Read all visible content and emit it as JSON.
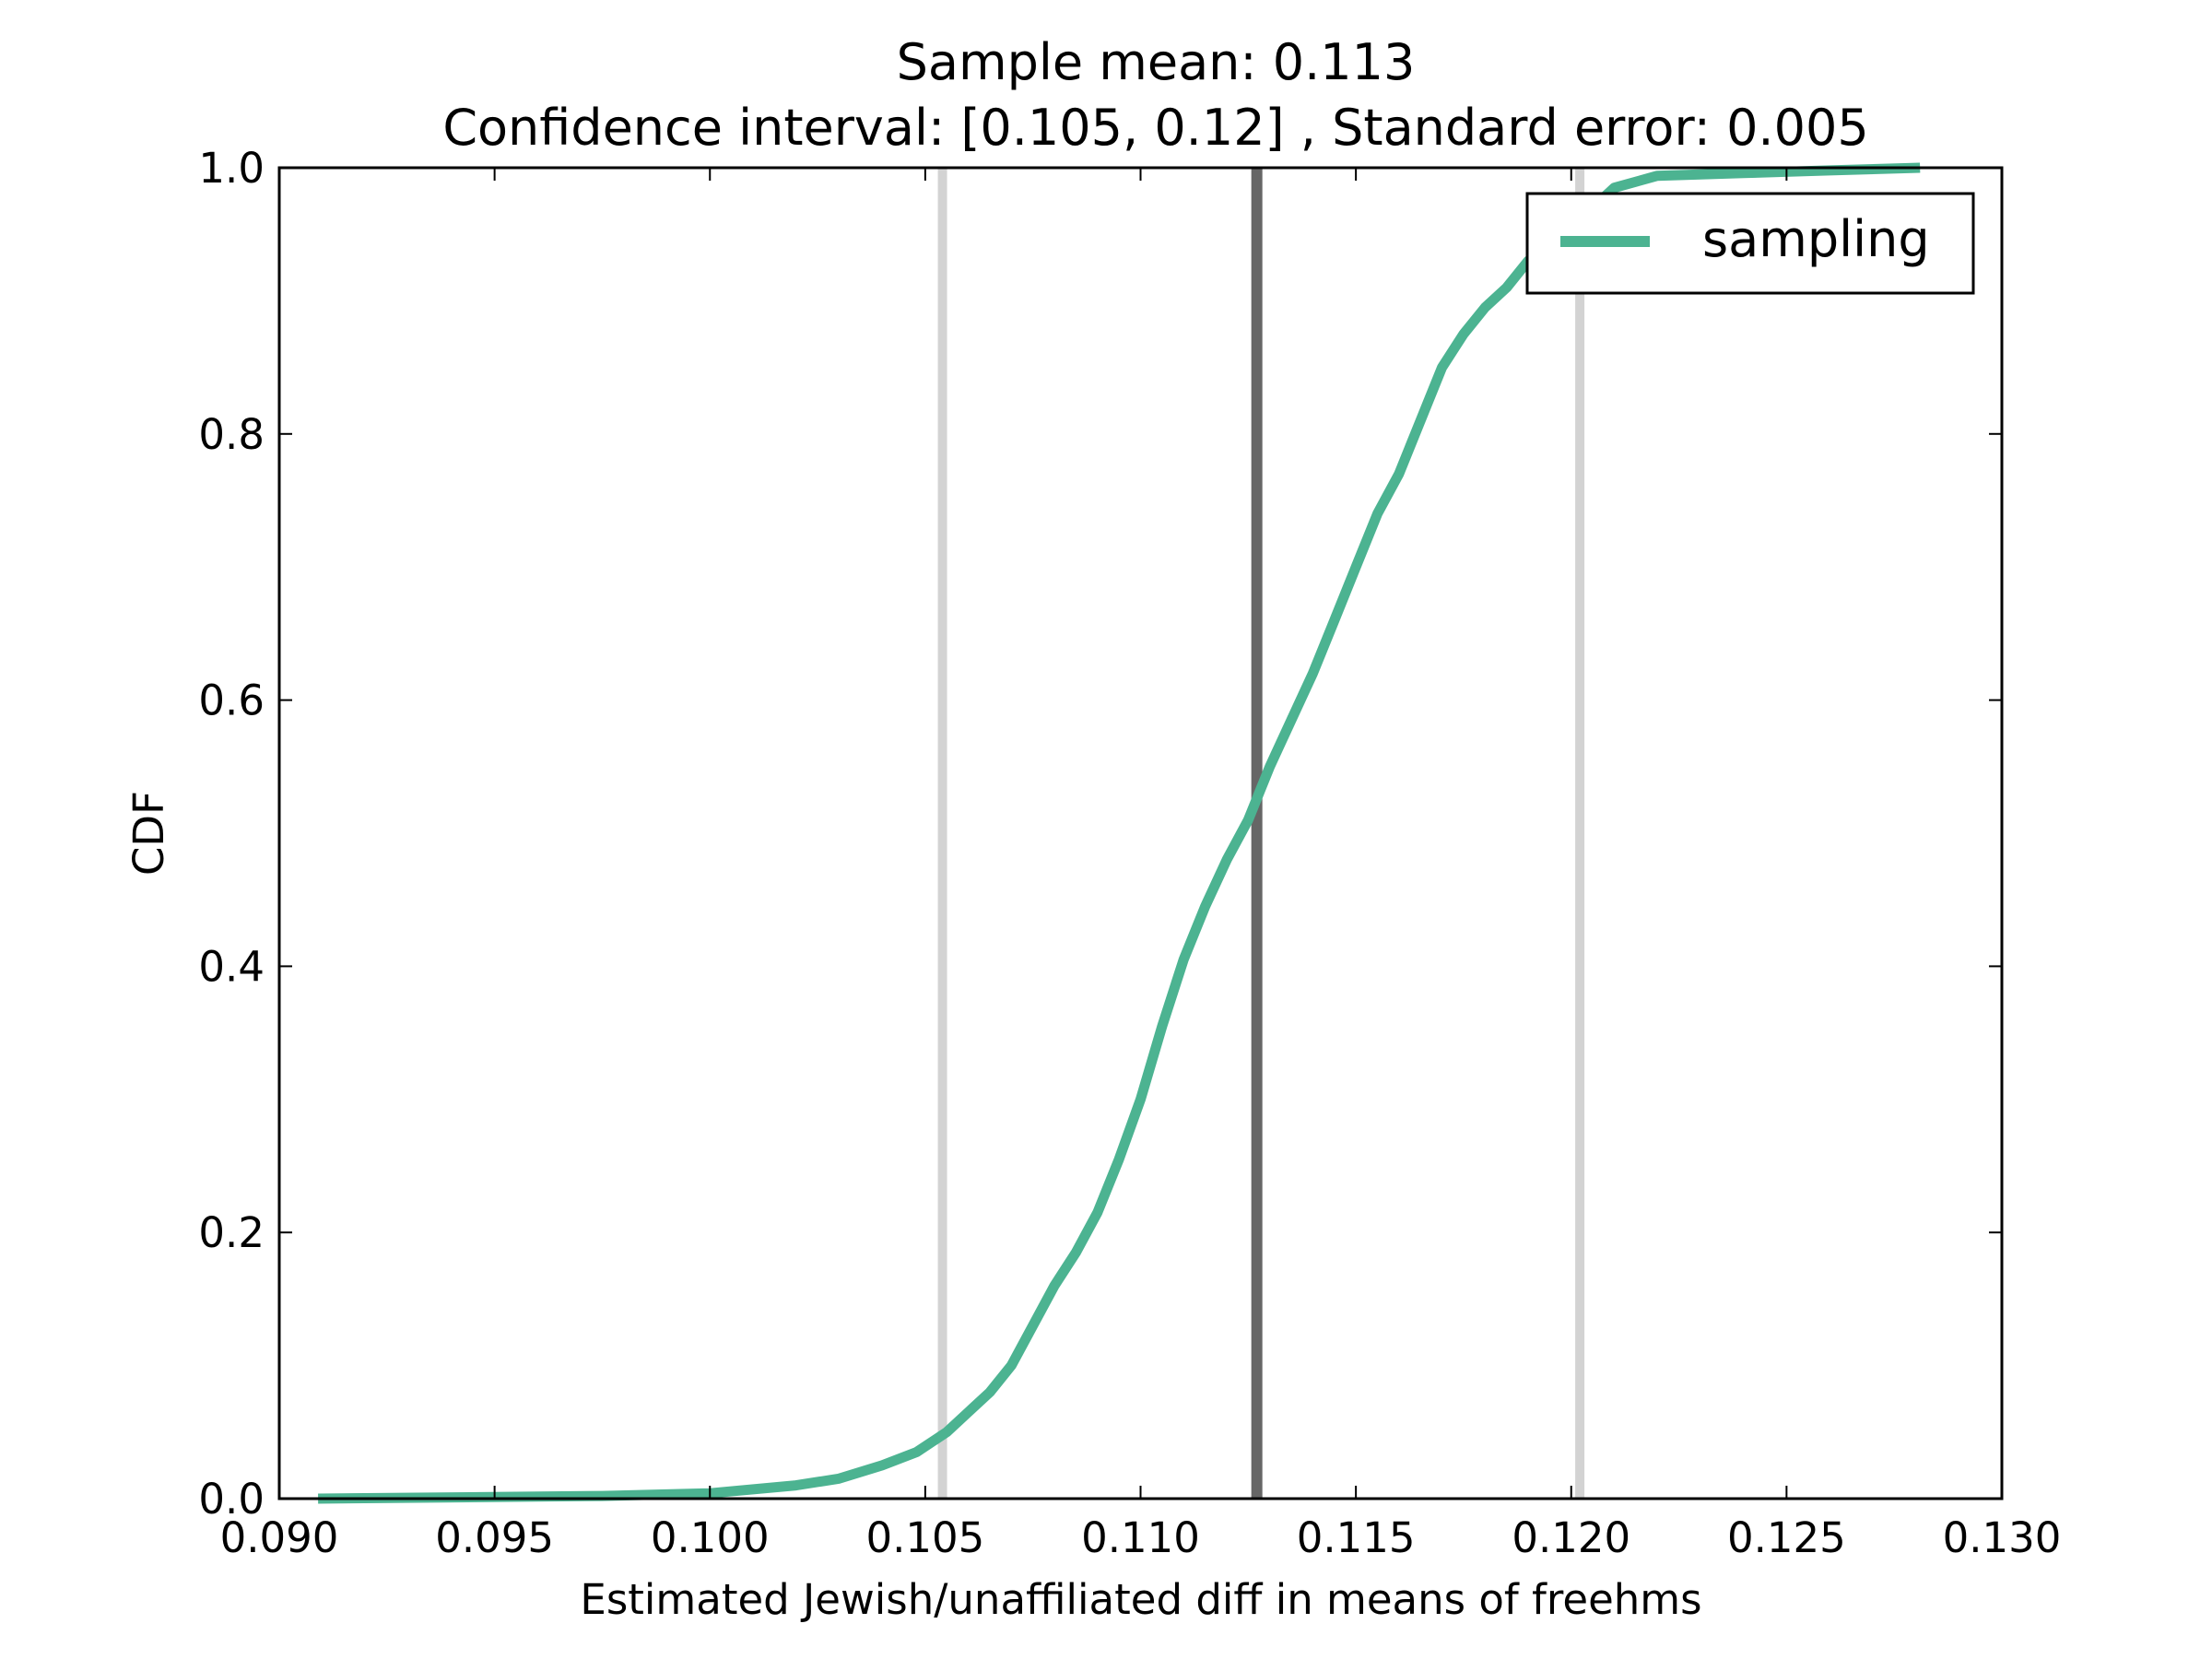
{
  "chart_data": {
    "type": "line",
    "title": "Sample mean: 0.113",
    "subtitle": "Confidence interval: [0.105, 0.12] , Standard error: 0.005",
    "xlabel": "Estimated Jewish/unaffiliated diff in means of freehms",
    "ylabel": "CDF",
    "xlim": [
      0.09,
      0.13
    ],
    "ylim": [
      0.0,
      1.0
    ],
    "grid": false,
    "legend_position": "top-right",
    "x_ticks": [
      "0.090",
      "0.095",
      "0.100",
      "0.105",
      "0.110",
      "0.115",
      "0.120",
      "0.125",
      "0.130"
    ],
    "y_ticks": [
      "0.0",
      "0.2",
      "0.4",
      "0.6",
      "0.8",
      "1.0"
    ],
    "series": [
      {
        "name": "sampling",
        "color": "#4cb391",
        "x": [
          0.0909,
          0.0975,
          0.1,
          0.102,
          0.103,
          0.104,
          0.1048,
          0.1055,
          0.106,
          0.1065,
          0.107,
          0.1075,
          0.108,
          0.1085,
          0.109,
          0.1095,
          0.11,
          0.1105,
          0.111,
          0.1115,
          0.112,
          0.1125,
          0.113,
          0.1135,
          0.114,
          0.1145,
          0.115,
          0.1155,
          0.116,
          0.1165,
          0.117,
          0.1175,
          0.118,
          0.1185,
          0.119,
          0.12,
          0.121,
          0.122,
          0.124,
          0.126,
          0.1281
        ],
        "y": [
          0.0,
          0.002,
          0.004,
          0.01,
          0.015,
          0.025,
          0.035,
          0.05,
          0.065,
          0.08,
          0.1,
          0.13,
          0.16,
          0.185,
          0.215,
          0.255,
          0.3,
          0.355,
          0.405,
          0.445,
          0.48,
          0.51,
          0.55,
          0.585,
          0.62,
          0.66,
          0.7,
          0.74,
          0.77,
          0.81,
          0.85,
          0.875,
          0.895,
          0.91,
          0.93,
          0.955,
          0.985,
          0.994,
          0.996,
          0.998,
          1.0
        ]
      }
    ],
    "vertical_lines": [
      {
        "x": 0.1054,
        "color": "#d3d3d3"
      },
      {
        "x": 0.1127,
        "color": "#666666"
      },
      {
        "x": 0.1202,
        "color": "#d3d3d3"
      }
    ]
  }
}
